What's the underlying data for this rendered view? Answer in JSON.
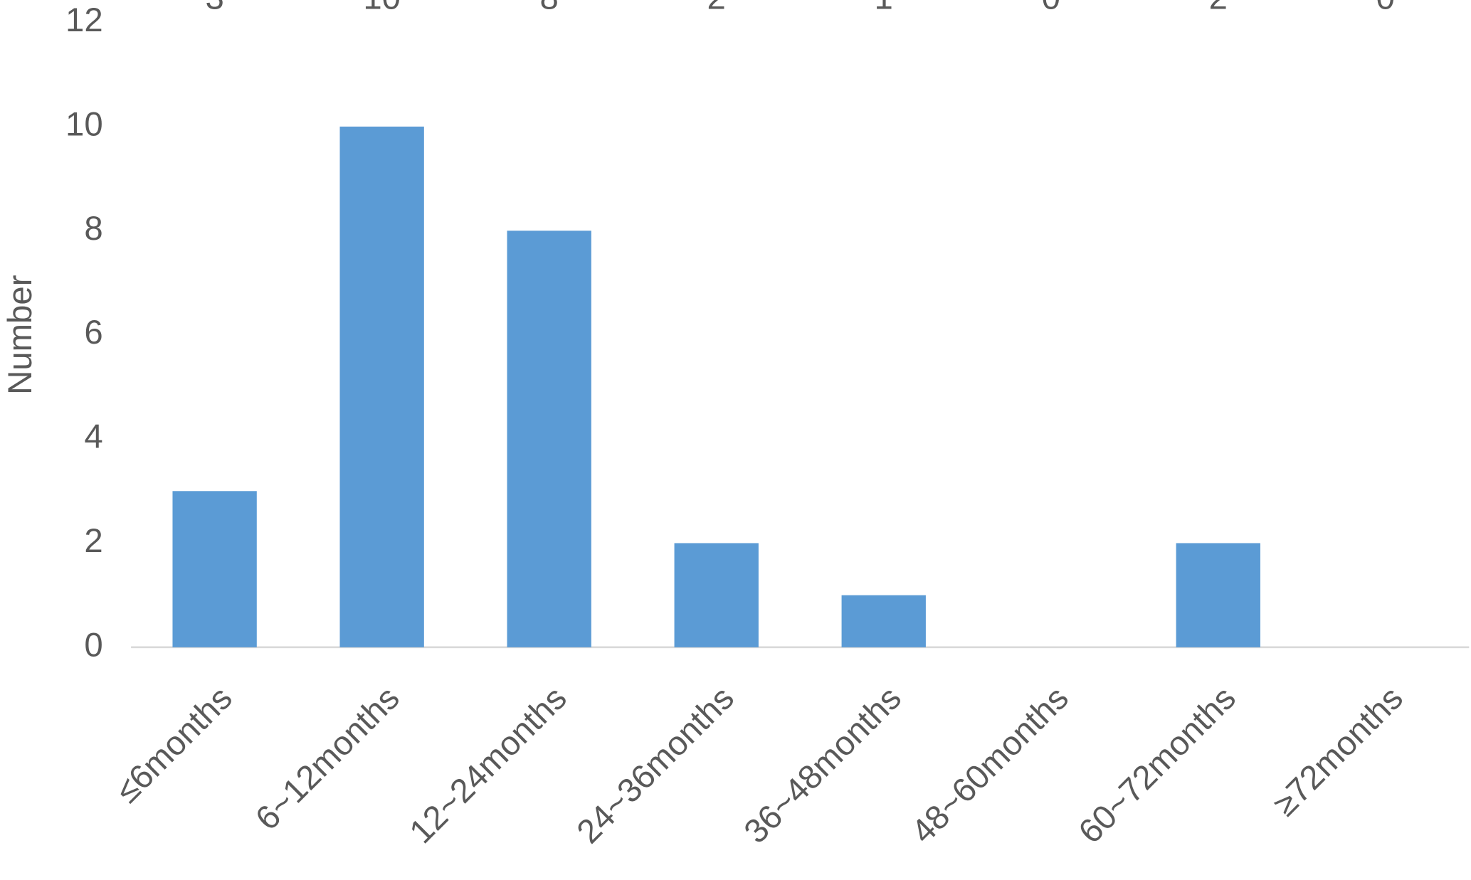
{
  "chart_data": {
    "type": "bar",
    "ylabel": "Number",
    "categories": [
      "≤6months",
      "6~12months",
      "12~24months",
      "24~36months",
      "36~48months",
      "48~60months",
      "60~72months",
      "≥72months"
    ],
    "values": [
      3,
      10,
      8,
      2,
      1,
      0,
      2,
      0
    ],
    "color": "#5b9bd5",
    "ylim": [
      0,
      12
    ],
    "yticks": [
      0,
      2,
      4,
      6,
      8,
      10,
      12
    ],
    "grid": false
  }
}
